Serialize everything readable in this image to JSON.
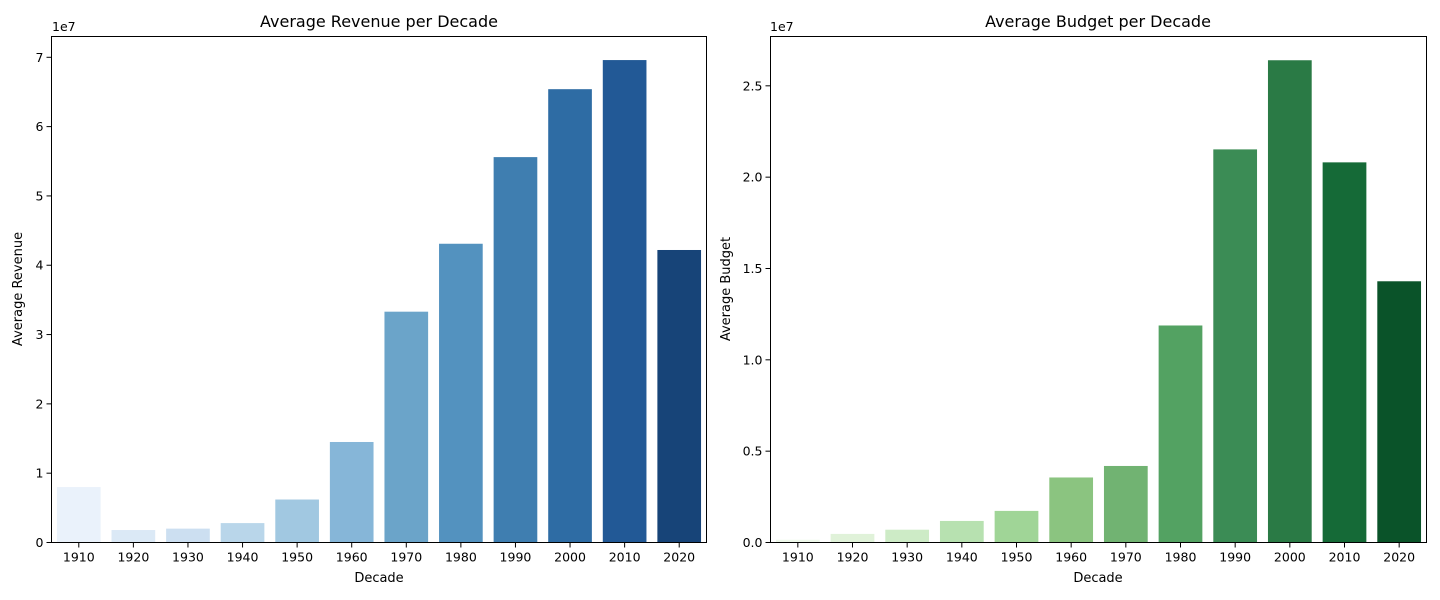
{
  "chart_data": [
    {
      "type": "bar",
      "title": "Average Revenue per Decade",
      "xlabel": "Decade",
      "ylabel": "Average Revenue",
      "multiplier_label": "1e7",
      "categories": [
        "1910",
        "1920",
        "1930",
        "1940",
        "1950",
        "1960",
        "1970",
        "1980",
        "1990",
        "2000",
        "2010",
        "2020"
      ],
      "values": [
        8000000,
        1800000,
        2000000,
        2800000,
        6200000,
        14500000,
        33300000,
        43100000,
        55600000,
        65400000,
        69600000,
        42200000
      ],
      "ylim": [
        0,
        73000000
      ],
      "yticks": [
        0,
        10000000,
        20000000,
        30000000,
        40000000,
        50000000,
        60000000,
        70000000
      ],
      "ytick_labels": [
        "0",
        "1",
        "2",
        "3",
        "4",
        "5",
        "6",
        "7"
      ],
      "colors": [
        "#eaf2fb",
        "#dbe9f6",
        "#ccdff1",
        "#b9d6ea",
        "#a1c8e1",
        "#86b6d8",
        "#6ba4c9",
        "#5392bf",
        "#3f7eb0",
        "#2e6ca4",
        "#225996",
        "#174478"
      ],
      "grid": false,
      "legend": "none"
    },
    {
      "type": "bar",
      "title": "Average Budget per Decade",
      "xlabel": "Decade",
      "ylabel": "Average Budget",
      "multiplier_label": "1e7",
      "categories": [
        "1910",
        "1920",
        "1930",
        "1940",
        "1950",
        "1960",
        "1970",
        "1980",
        "1990",
        "2000",
        "2010",
        "2020"
      ],
      "values": [
        150000,
        470000,
        700000,
        1180000,
        1730000,
        3560000,
        4190000,
        11880000,
        21520000,
        26400000,
        20810000,
        14300000
      ],
      "ylim": [
        0,
        27700000
      ],
      "yticks": [
        0,
        5000000,
        10000000,
        15000000,
        20000000,
        25000000
      ],
      "ytick_labels": [
        "0.0",
        "0.5",
        "1.0",
        "1.5",
        "2.0",
        "2.5"
      ],
      "colors": [
        "#eef8ea",
        "#e0f2d9",
        "#cdebc6",
        "#b7e1b0",
        "#a0d597",
        "#8bc480",
        "#71b372",
        "#53a262",
        "#3b8c55",
        "#2a7a45",
        "#156a37",
        "#0a5329"
      ],
      "grid": false,
      "legend": "none"
    }
  ]
}
